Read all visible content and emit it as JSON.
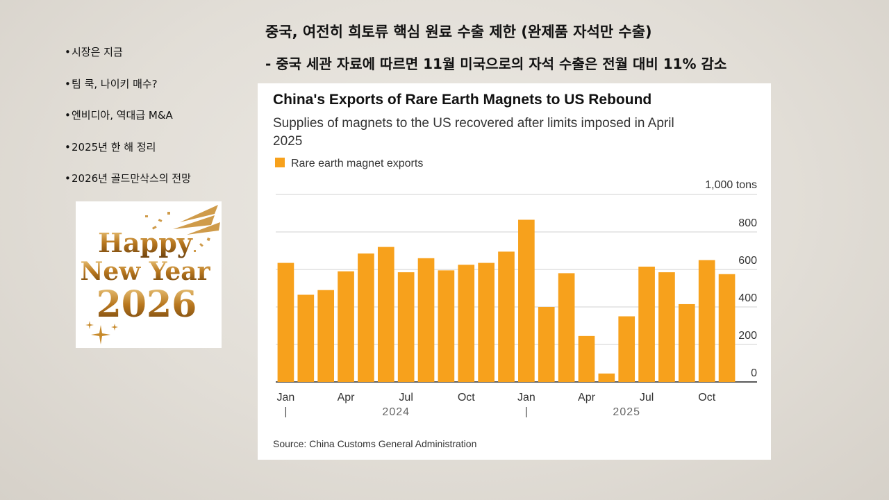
{
  "sidebar": {
    "items": [
      {
        "label": "시장은 지금"
      },
      {
        "label": "팀 쿡, 나이키 매수?"
      },
      {
        "label": "엔비디아, 역대급 M&A"
      },
      {
        "label": "2025년 한 해 정리"
      },
      {
        "label": "2026년 골드만삭스의 전망"
      }
    ],
    "image": {
      "line1": "Happy",
      "line2": "New Year",
      "line3": "2026"
    }
  },
  "header": {
    "title": "중국, 여전히 희토류 핵심 원료 수출 제한 (완제품 자석만 수출)",
    "subtitle": "- 중국 세관 자료에 따르면 11월 미국으로의 자석 수출은 전월 대비 11% 감소"
  },
  "colors": {
    "bar": "#f7a11c",
    "text": "#111111",
    "muted": "#666666",
    "grid": "#d0d0d0"
  },
  "chart_data": {
    "type": "bar",
    "title": "China's Exports of Rare Earth Magnets to US Rebound",
    "subtitle_lines": [
      "Supplies of magnets to the US recovered after limits imposed in April",
      "2025"
    ],
    "legend": "Rare earth magnet exports",
    "unit_label": "1,000 tons",
    "source": "Source: China Customs General Administration",
    "y_ticks": [
      0,
      200,
      400,
      600,
      800
    ],
    "ylim": [
      0,
      1000
    ],
    "x_tick_labels": [
      {
        "index": 0,
        "label": "Jan"
      },
      {
        "index": 3,
        "label": "Apr"
      },
      {
        "index": 6,
        "label": "Jul"
      },
      {
        "index": 9,
        "label": "Oct"
      },
      {
        "index": 12,
        "label": "Jan"
      },
      {
        "index": 15,
        "label": "Apr"
      },
      {
        "index": 18,
        "label": "Jul"
      },
      {
        "index": 21,
        "label": "Oct"
      }
    ],
    "year_labels": [
      {
        "start": 0,
        "end": 11,
        "label": "2024"
      },
      {
        "start": 12,
        "end": 22,
        "label": "2025"
      }
    ],
    "categories": [
      "Jan 2024",
      "Feb 2024",
      "Mar 2024",
      "Apr 2024",
      "May 2024",
      "Jun 2024",
      "Jul 2024",
      "Aug 2024",
      "Sep 2024",
      "Oct 2024",
      "Nov 2024",
      "Dec 2024",
      "Jan 2025",
      "Feb 2025",
      "Mar 2025",
      "Apr 2025",
      "May 2025",
      "Jun 2025",
      "Jul 2025",
      "Aug 2025",
      "Sep 2025",
      "Oct 2025",
      "Nov 2025"
    ],
    "values": [
      635,
      465,
      490,
      590,
      685,
      720,
      585,
      660,
      595,
      625,
      635,
      695,
      865,
      400,
      580,
      245,
      45,
      350,
      615,
      585,
      415,
      650,
      575
    ]
  }
}
